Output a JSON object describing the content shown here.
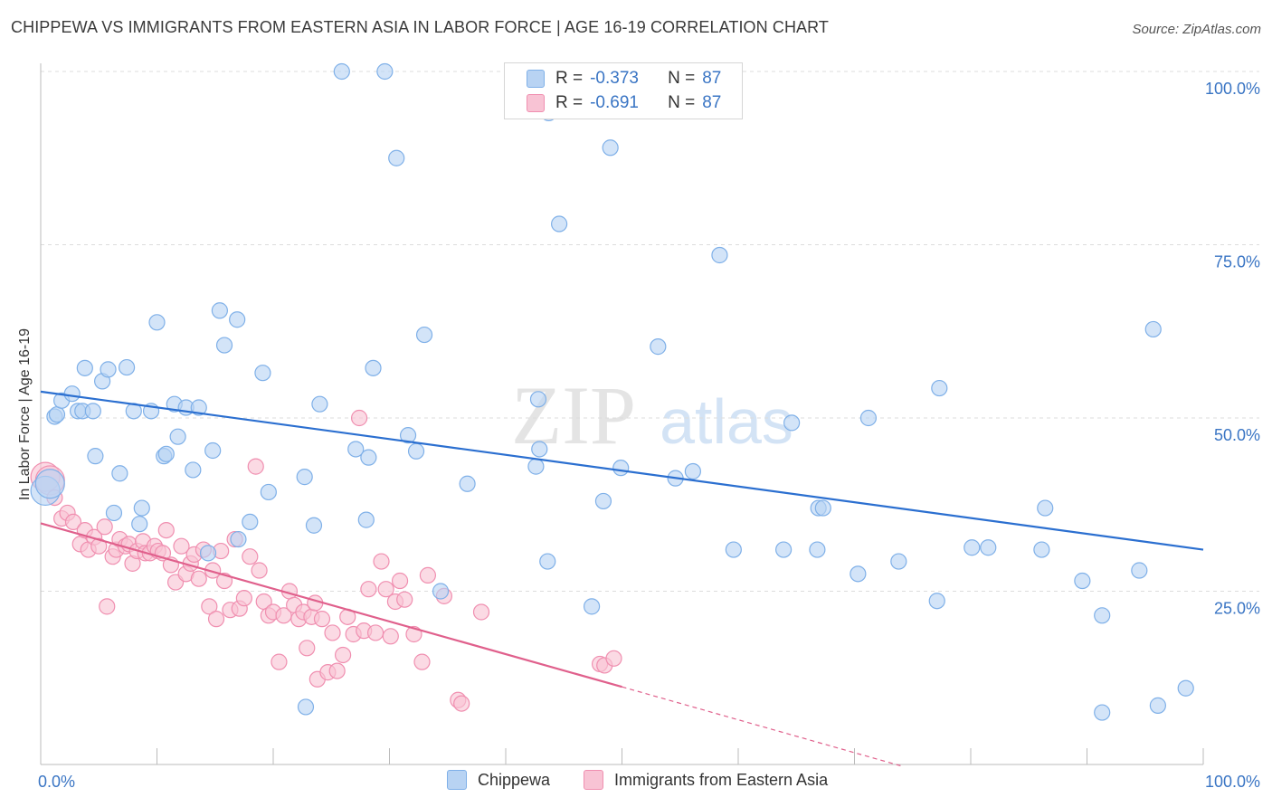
{
  "header": {
    "title": "CHIPPEWA VS IMMIGRANTS FROM EASTERN ASIA IN LABOR FORCE | AGE 16-19 CORRELATION CHART",
    "source": "Source: ZipAtlas.com"
  },
  "watermark": {
    "zip": "ZIP",
    "atlas": "atlas"
  },
  "legend": {
    "items": [
      {
        "r_label": "R =",
        "r_value": "-0.373",
        "n_label": "N =",
        "n_value": "87"
      },
      {
        "r_label": "R =",
        "r_value": "-0.691",
        "n_label": "N =",
        "n_value": "87"
      }
    ]
  },
  "chart_data": {
    "type": "scatter",
    "title": "CHIPPEWA VS IMMIGRANTS FROM EASTERN ASIA IN LABOR FORCE | AGE 16-19 CORRELATION CHART",
    "xlabel": "",
    "ylabel": "In Labor Force | Age 16-19",
    "xlim": [
      0,
      100
    ],
    "ylim": [
      0,
      100
    ],
    "x_tick_labels": [
      "0.0%",
      "100.0%"
    ],
    "y_ticks": [
      25,
      50,
      75,
      100
    ],
    "y_tick_labels": [
      "25.0%",
      "50.0%",
      "75.0%",
      "100.0%"
    ],
    "grid": true,
    "legend_position": "bottom",
    "series": [
      {
        "name": "Chippewa",
        "color": "#7fb0e8",
        "fill": "#b8d3f3",
        "line_color": "#2b6fd0",
        "trend": {
          "x": [
            0,
            100
          ],
          "y": [
            53.8,
            31.0
          ]
        },
        "points": [
          [
            0.4,
            39.5
          ],
          [
            0.8,
            40.5
          ],
          [
            1.2,
            50.2
          ],
          [
            1.4,
            50.5
          ],
          [
            1.8,
            52.5
          ],
          [
            2.7,
            53.5
          ],
          [
            3.2,
            51.0
          ],
          [
            3.6,
            51.0
          ],
          [
            3.8,
            57.2
          ],
          [
            4.5,
            51.0
          ],
          [
            4.7,
            44.5
          ],
          [
            5.3,
            55.3
          ],
          [
            5.8,
            57.0
          ],
          [
            6.3,
            36.3
          ],
          [
            6.8,
            42.0
          ],
          [
            7.4,
            57.3
          ],
          [
            8.0,
            51.0
          ],
          [
            8.5,
            34.7
          ],
          [
            8.7,
            37.0
          ],
          [
            9.5,
            51.0
          ],
          [
            10.0,
            63.8
          ],
          [
            10.6,
            44.5
          ],
          [
            10.8,
            44.8
          ],
          [
            11.5,
            52.0
          ],
          [
            11.8,
            47.3
          ],
          [
            12.5,
            51.5
          ],
          [
            13.1,
            42.5
          ],
          [
            13.6,
            51.5
          ],
          [
            14.4,
            30.5
          ],
          [
            14.8,
            45.3
          ],
          [
            15.4,
            65.5
          ],
          [
            15.8,
            60.5
          ],
          [
            16.9,
            64.2
          ],
          [
            17.0,
            32.5
          ],
          [
            18.0,
            35.0
          ],
          [
            19.1,
            56.5
          ],
          [
            19.6,
            39.3
          ],
          [
            22.7,
            41.5
          ],
          [
            22.8,
            8.3
          ],
          [
            23.5,
            34.5
          ],
          [
            24.0,
            52.0
          ],
          [
            25.9,
            100.0
          ],
          [
            27.1,
            45.5
          ],
          [
            28.0,
            35.3
          ],
          [
            28.2,
            44.3
          ],
          [
            28.6,
            57.2
          ],
          [
            29.6,
            100.0
          ],
          [
            30.6,
            87.5
          ],
          [
            31.6,
            47.5
          ],
          [
            32.3,
            45.2
          ],
          [
            33.0,
            62.0
          ],
          [
            34.4,
            25.0
          ],
          [
            36.7,
            40.5
          ],
          [
            42.6,
            43.0
          ],
          [
            42.8,
            52.7
          ],
          [
            42.9,
            45.5
          ],
          [
            43.6,
            29.3
          ],
          [
            43.7,
            94.0
          ],
          [
            44.6,
            78.0
          ],
          [
            47.4,
            22.8
          ],
          [
            48.4,
            38.0
          ],
          [
            49.0,
            89.0
          ],
          [
            49.9,
            42.8
          ],
          [
            53.1,
            60.3
          ],
          [
            54.6,
            41.3
          ],
          [
            56.1,
            42.3
          ],
          [
            58.4,
            73.5
          ],
          [
            59.6,
            31.0
          ],
          [
            63.9,
            31.0
          ],
          [
            64.6,
            49.3
          ],
          [
            66.8,
            31.0
          ],
          [
            66.9,
            37.0
          ],
          [
            67.3,
            37.0
          ],
          [
            70.3,
            27.5
          ],
          [
            71.2,
            50.0
          ],
          [
            73.8,
            29.3
          ],
          [
            77.1,
            23.6
          ],
          [
            77.3,
            54.3
          ],
          [
            80.1,
            31.3
          ],
          [
            81.5,
            31.3
          ],
          [
            86.1,
            31.0
          ],
          [
            86.4,
            37.0
          ],
          [
            89.6,
            26.5
          ],
          [
            91.3,
            21.5
          ],
          [
            91.3,
            7.5
          ],
          [
            94.5,
            28.0
          ],
          [
            95.7,
            62.8
          ],
          [
            96.1,
            8.5
          ],
          [
            98.5,
            11.0
          ]
        ]
      },
      {
        "name": "Immigrants from Eastern Asia",
        "color": "#f08fb0",
        "fill": "#f8c3d4",
        "line_color": "#e0608c",
        "trend": {
          "x": [
            0,
            50
          ],
          "y": [
            34.8,
            11.2
          ]
        },
        "trend_extension": {
          "x": [
            50,
            74
          ],
          "y": [
            11.2,
            -0.2
          ]
        },
        "points": [
          [
            0.4,
            41.5
          ],
          [
            0.8,
            41.0
          ],
          [
            1.2,
            38.5
          ],
          [
            1.8,
            35.5
          ],
          [
            2.3,
            36.3
          ],
          [
            2.8,
            35.0
          ],
          [
            3.4,
            31.8
          ],
          [
            3.8,
            33.8
          ],
          [
            4.1,
            31.0
          ],
          [
            4.6,
            32.8
          ],
          [
            5.0,
            31.5
          ],
          [
            5.5,
            34.3
          ],
          [
            5.7,
            22.8
          ],
          [
            6.2,
            30.0
          ],
          [
            6.5,
            31.0
          ],
          [
            6.8,
            32.5
          ],
          [
            7.3,
            31.5
          ],
          [
            7.6,
            31.8
          ],
          [
            7.9,
            29.0
          ],
          [
            8.3,
            30.8
          ],
          [
            8.8,
            32.2
          ],
          [
            9.0,
            30.5
          ],
          [
            9.4,
            30.5
          ],
          [
            9.8,
            31.5
          ],
          [
            10.1,
            30.8
          ],
          [
            10.5,
            30.5
          ],
          [
            10.8,
            33.8
          ],
          [
            11.2,
            28.8
          ],
          [
            11.6,
            26.3
          ],
          [
            12.1,
            31.5
          ],
          [
            12.5,
            27.5
          ],
          [
            12.9,
            29.0
          ],
          [
            13.2,
            30.3
          ],
          [
            13.6,
            26.8
          ],
          [
            14.0,
            31.0
          ],
          [
            14.5,
            22.8
          ],
          [
            14.8,
            28.0
          ],
          [
            15.1,
            21.0
          ],
          [
            15.5,
            30.8
          ],
          [
            15.8,
            26.5
          ],
          [
            16.3,
            22.3
          ],
          [
            16.7,
            32.5
          ],
          [
            17.1,
            22.5
          ],
          [
            17.5,
            24.0
          ],
          [
            18.0,
            30.0
          ],
          [
            18.5,
            43.0
          ],
          [
            18.8,
            28.0
          ],
          [
            19.2,
            23.5
          ],
          [
            19.6,
            21.5
          ],
          [
            20.0,
            22.0
          ],
          [
            20.5,
            14.8
          ],
          [
            20.9,
            21.5
          ],
          [
            21.4,
            25.0
          ],
          [
            21.8,
            23.0
          ],
          [
            22.2,
            21.0
          ],
          [
            22.6,
            22.0
          ],
          [
            22.9,
            16.8
          ],
          [
            23.3,
            21.3
          ],
          [
            23.6,
            23.3
          ],
          [
            23.8,
            12.3
          ],
          [
            24.2,
            21.0
          ],
          [
            24.7,
            13.3
          ],
          [
            25.1,
            19.0
          ],
          [
            25.5,
            13.5
          ],
          [
            26.0,
            15.8
          ],
          [
            26.4,
            21.3
          ],
          [
            26.9,
            18.8
          ],
          [
            27.4,
            50.0
          ],
          [
            27.8,
            19.3
          ],
          [
            28.2,
            25.3
          ],
          [
            28.8,
            19.0
          ],
          [
            29.3,
            29.3
          ],
          [
            29.7,
            25.3
          ],
          [
            30.1,
            18.5
          ],
          [
            30.5,
            23.5
          ],
          [
            30.9,
            26.5
          ],
          [
            31.3,
            23.8
          ],
          [
            32.1,
            18.8
          ],
          [
            32.8,
            14.8
          ],
          [
            33.3,
            27.3
          ],
          [
            34.7,
            24.3
          ],
          [
            35.9,
            9.3
          ],
          [
            36.2,
            8.8
          ],
          [
            37.9,
            22.0
          ],
          [
            48.1,
            14.5
          ],
          [
            48.5,
            14.3
          ],
          [
            49.3,
            15.3
          ]
        ]
      }
    ]
  },
  "bottom_legend": {
    "items": [
      {
        "label": "Chippewa"
      },
      {
        "label": "Immigrants from Eastern Asia"
      }
    ]
  }
}
